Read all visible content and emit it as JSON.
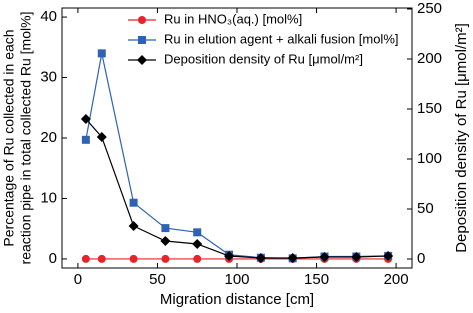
{
  "chart_data": {
    "type": "line",
    "x_label": "Migration distance [cm]",
    "y_label": [
      "Percentage of Ru collected in each",
      "reaction pipe in total collected Ru [mol%]"
    ],
    "y2_label": "Deposition density of Ru [μmol/m²]",
    "xlim": [
      -10,
      210
    ],
    "xticks": [
      0,
      50,
      100,
      150,
      200
    ],
    "ylim": [
      -1.5,
      41.5
    ],
    "yticks": [
      0,
      10,
      20,
      30,
      40
    ],
    "y2lim": [
      -9,
      251
    ],
    "y2ticks": [
      0,
      50,
      100,
      150,
      200,
      250
    ],
    "legend": "upper right",
    "grid": false,
    "x": [
      5,
      15,
      35,
      55,
      75,
      95,
      115,
      135,
      155,
      175,
      195
    ],
    "series": [
      {
        "name": "Ru in HNO₃(aq.) [mol%]",
        "color": "#e8232a",
        "marker": "circle",
        "axis": "y",
        "values": [
          0,
          0,
          0,
          0,
          0,
          0,
          0,
          0,
          0,
          0,
          0
        ]
      },
      {
        "name": "Ru in elution agent + alkali fusion [mol%]",
        "color": "#2e62b5",
        "marker": "square",
        "axis": "y",
        "values": [
          19.7,
          34,
          9.3,
          5.1,
          4.4,
          0.7,
          0.2,
          0.1,
          0.4,
          0.4,
          0.5
        ]
      },
      {
        "name": "Deposition density of Ru [μmol/m²]",
        "color": "#000000",
        "marker": "diamond",
        "axis": "y2",
        "values": [
          140,
          122,
          33,
          18,
          15,
          3,
          1,
          1,
          2,
          2,
          3
        ]
      }
    ]
  }
}
